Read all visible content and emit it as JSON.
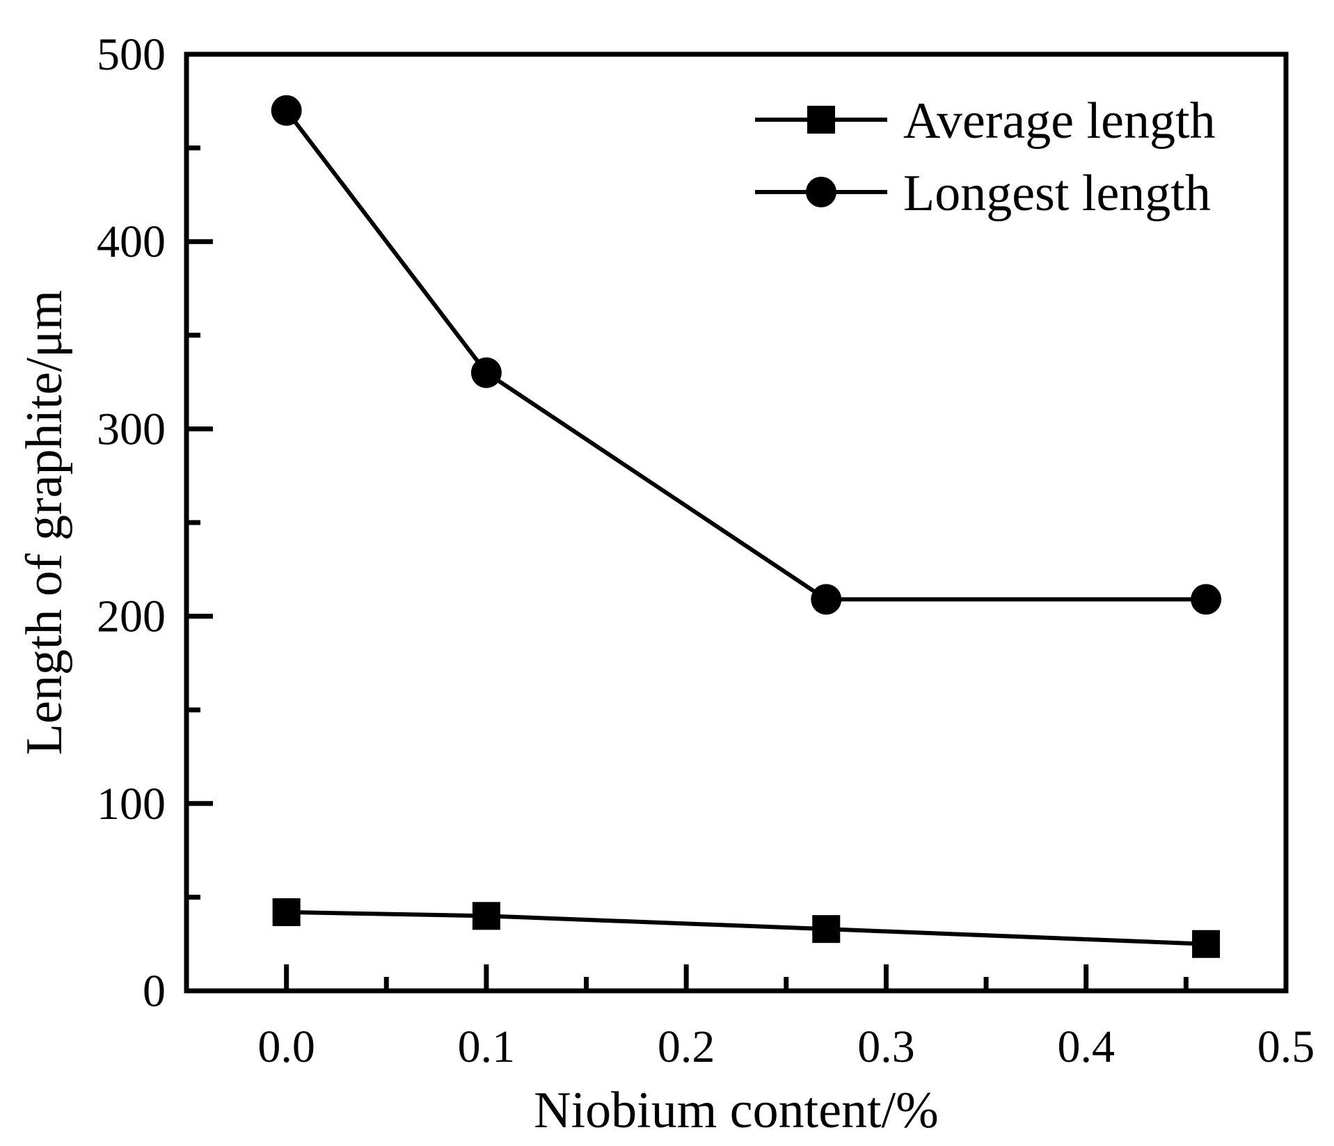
{
  "chart_data": {
    "type": "line",
    "title": "",
    "xlabel": "Niobium content/%",
    "ylabel": "Length of graphite/μm",
    "xlim": [
      -0.05,
      0.5
    ],
    "ylim": [
      0,
      500
    ],
    "x_ticks": [
      "0.0",
      "0.1",
      "0.2",
      "0.3",
      "0.4",
      "0.5"
    ],
    "x_tick_values": [
      0.0,
      0.1,
      0.2,
      0.3,
      0.4,
      0.5
    ],
    "y_ticks": [
      "0",
      "100",
      "200",
      "300",
      "400",
      "500"
    ],
    "y_tick_values": [
      0,
      100,
      200,
      300,
      400,
      500
    ],
    "legend_position": "top-right",
    "grid": false,
    "series": [
      {
        "name": "Average length",
        "marker": "square",
        "x": [
          0.0,
          0.1,
          0.27,
          0.46
        ],
        "y": [
          42,
          40,
          33,
          25
        ]
      },
      {
        "name": "Longest length",
        "marker": "circle",
        "x": [
          0.0,
          0.1,
          0.27,
          0.46
        ],
        "y": [
          470,
          330,
          209,
          209
        ]
      }
    ]
  }
}
